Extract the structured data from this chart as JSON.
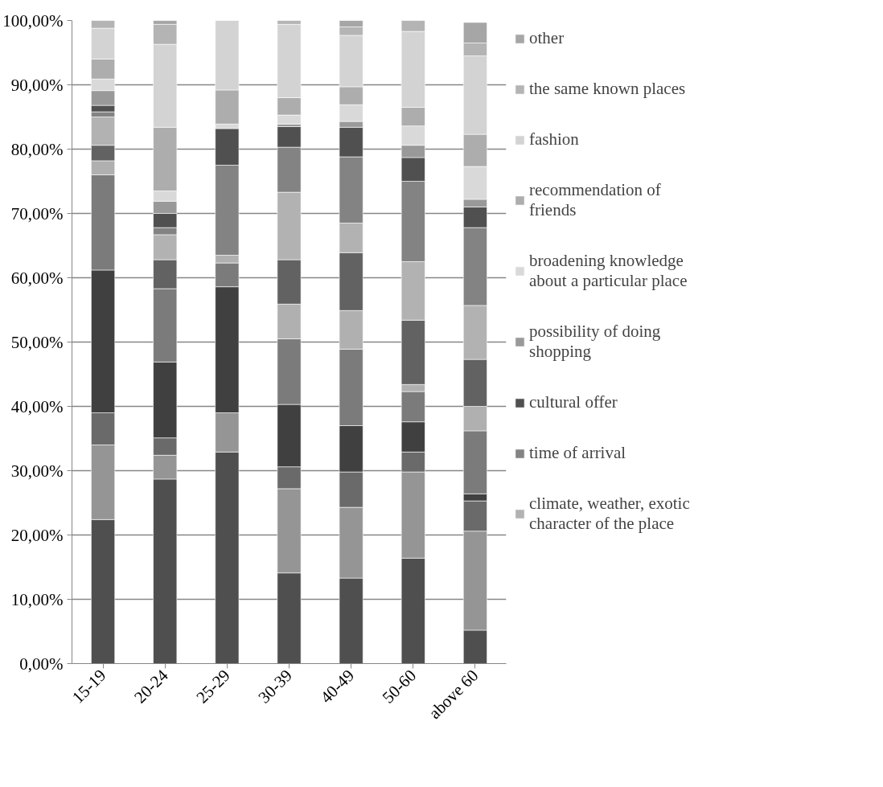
{
  "chart_data": {
    "type": "bar",
    "stacked": true,
    "categories": [
      "15-19",
      "20-24",
      "25-29",
      "30-39",
      "40-49",
      "50-60",
      "above 60"
    ],
    "ylim": [
      0,
      100
    ],
    "yticks": [
      {
        "value": 0,
        "label": "0,00%"
      },
      {
        "value": 10,
        "label": "10,00%"
      },
      {
        "value": 20,
        "label": "20,00%"
      },
      {
        "value": 30,
        "label": "30,00%"
      },
      {
        "value": 40,
        "label": "40,00%"
      },
      {
        "value": 50,
        "label": "50,00%"
      },
      {
        "value": 60,
        "label": "60,00%"
      },
      {
        "value": 70,
        "label": "70,00%"
      },
      {
        "value": 80,
        "label": "80,00%"
      },
      {
        "value": 90,
        "label": "90,00%"
      },
      {
        "value": 100,
        "label": "100,00%"
      }
    ],
    "grid": "y",
    "legend": "right",
    "series": [
      {
        "color": "#4f4f4f",
        "values": [
          22.4,
          28.7,
          32.9,
          14.1,
          13.3,
          16.4,
          5.2
        ]
      },
      {
        "color": "#959595",
        "values": [
          11.6,
          3.7,
          6.1,
          13.1,
          11.0,
          13.4,
          15.4
        ]
      },
      {
        "color": "#6a6a6a",
        "values": [
          5.0,
          2.7,
          0,
          3.4,
          5.5,
          3.1,
          4.7
        ]
      },
      {
        "color": "#404040",
        "values": [
          22.2,
          11.8,
          19.6,
          9.7,
          7.2,
          4.7,
          1.1
        ]
      },
      {
        "color": "#7b7b7b",
        "values": [
          14.8,
          11.4,
          3.7,
          10.2,
          11.9,
          4.7,
          9.8
        ]
      },
      {
        "color": "#b0b0b0",
        "values": [
          2.2,
          0,
          1.2,
          5.4,
          6.0,
          1.1,
          3.8
        ]
      },
      {
        "color": "#626262",
        "values": [
          2.4,
          4.5,
          0,
          6.9,
          9.0,
          10.0,
          7.3
        ]
      },
      {
        "name": "climate, weather, exotic character of the place",
        "color": "#b2b2b2",
        "values": [
          4.4,
          3.9,
          0,
          10.5,
          4.6,
          9.1,
          8.4
        ]
      },
      {
        "name": "time of arrival",
        "color": "#838383",
        "values": [
          0.8,
          1.1,
          14.0,
          7.0,
          10.3,
          12.5,
          12.1
        ]
      },
      {
        "name": "cultural offer",
        "color": "#505050",
        "values": [
          1.0,
          2.2,
          5.7,
          3.2,
          4.6,
          3.7,
          3.2
        ]
      },
      {
        "name": "possibility of doing shopping",
        "color": "#999999",
        "values": [
          2.3,
          1.9,
          0,
          0.4,
          0.9,
          1.9,
          1.2
        ]
      },
      {
        "name": "broadening knowledge about a particular place",
        "color": "#d9d9d9",
        "values": [
          1.8,
          1.6,
          0.7,
          1.4,
          2.6,
          3.0,
          5.1
        ]
      },
      {
        "name": "recommendation of friends",
        "color": "#adadad",
        "values": [
          3.1,
          9.9,
          5.3,
          2.7,
          2.8,
          2.9,
          5.0
        ]
      },
      {
        "name": "fashion",
        "color": "#d3d3d3",
        "values": [
          4.8,
          12.9,
          10.8,
          11.4,
          8.0,
          11.8,
          12.2
        ]
      },
      {
        "name": "the same known places",
        "color": "#b4b4b4",
        "values": [
          1.2,
          3.1,
          0,
          0.6,
          1.3,
          1.7,
          2.0
        ]
      },
      {
        "name": "other",
        "color": "#a6a6a6",
        "values": [
          0,
          0.6,
          0,
          0,
          1.0,
          0,
          3.2
        ]
      }
    ]
  }
}
